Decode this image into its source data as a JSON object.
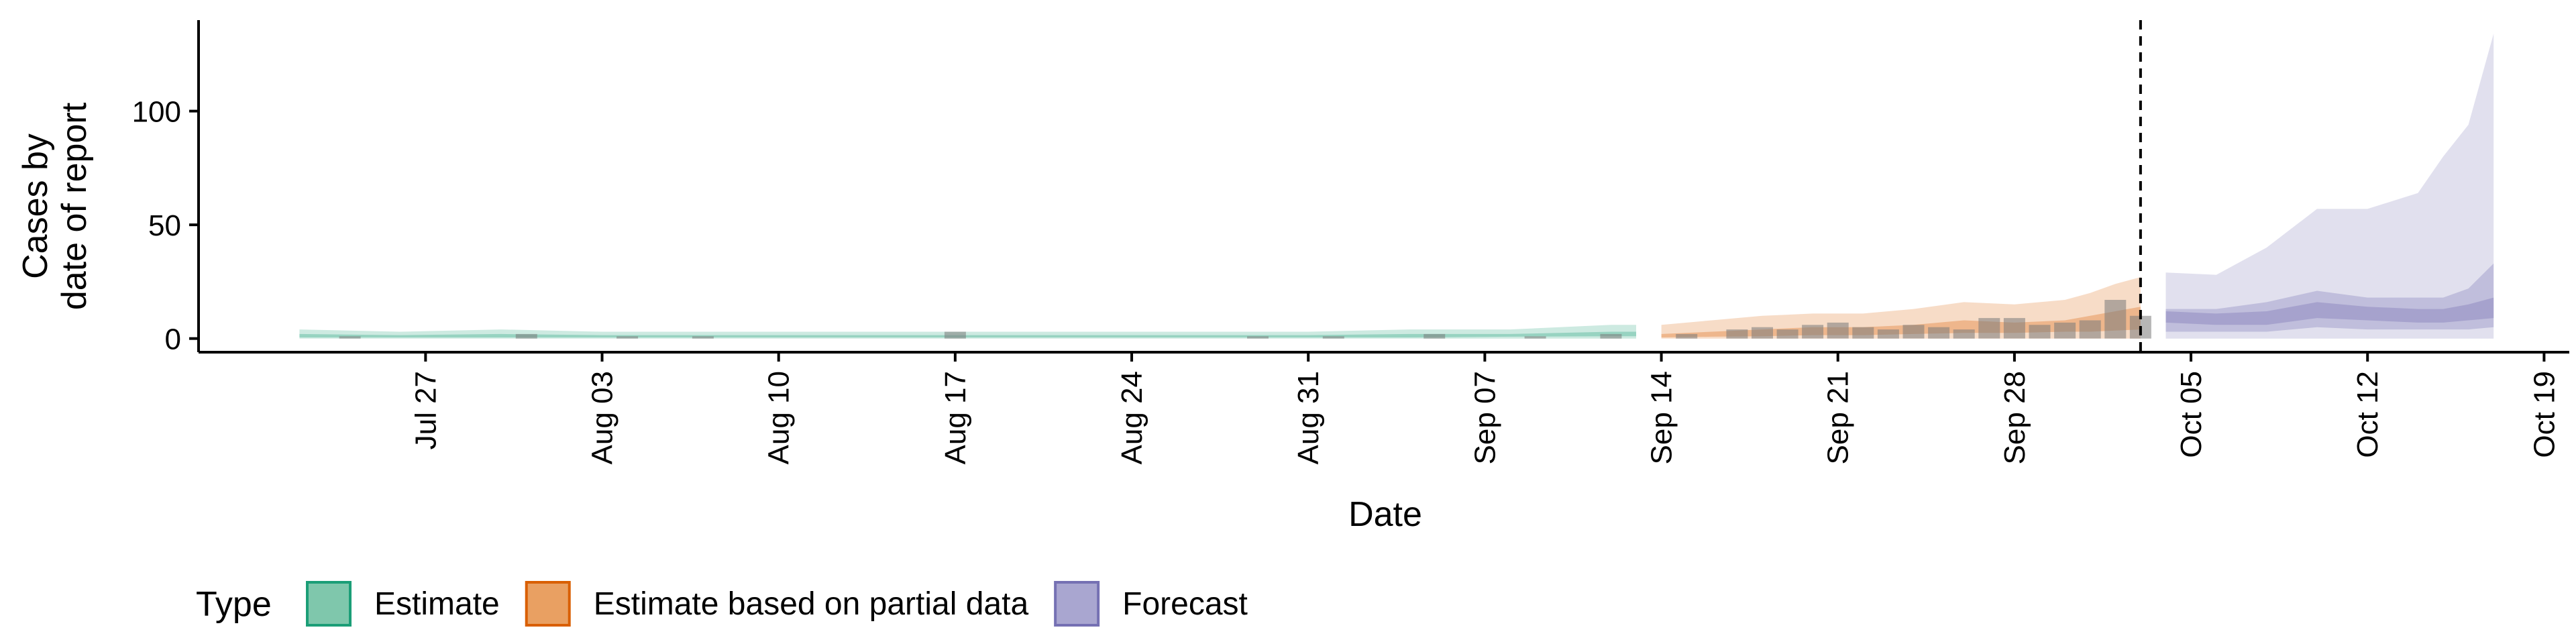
{
  "chart_data": {
    "type": "area",
    "title": "",
    "xlabel": "Date",
    "ylabel_lines": [
      "Cases by",
      "date of report"
    ],
    "xlim": [
      "2020-07-18",
      "2020-10-20"
    ],
    "ylim": [
      -6,
      140
    ],
    "grid": false,
    "y_ticks": [
      0,
      50,
      100
    ],
    "x_ticks": [
      {
        "date": "2020-07-27",
        "label": "Jul 27"
      },
      {
        "date": "2020-08-03",
        "label": "Aug 03"
      },
      {
        "date": "2020-08-10",
        "label": "Aug 10"
      },
      {
        "date": "2020-08-17",
        "label": "Aug 17"
      },
      {
        "date": "2020-08-24",
        "label": "Aug 24"
      },
      {
        "date": "2020-08-31",
        "label": "Aug 31"
      },
      {
        "date": "2020-09-07",
        "label": "Sep 07"
      },
      {
        "date": "2020-09-14",
        "label": "Sep 14"
      },
      {
        "date": "2020-09-21",
        "label": "Sep 21"
      },
      {
        "date": "2020-09-28",
        "label": "Sep 28"
      },
      {
        "date": "2020-10-05",
        "label": "Oct 05"
      },
      {
        "date": "2020-10-12",
        "label": "Oct 12"
      },
      {
        "date": "2020-10-19",
        "label": "Oct 19"
      }
    ],
    "forecast_start_line": "2020-10-03",
    "legend": {
      "title": "Type",
      "placement": "bottom-left",
      "items": [
        {
          "label": "Estimate",
          "fill": "#7fc7ac",
          "stroke": "#1b9e77"
        },
        {
          "label": "Estimate based on partial data",
          "fill": "#e9a062",
          "stroke": "#d95f02"
        },
        {
          "label": "Forecast",
          "fill": "#a9a6d0",
          "stroke": "#7570b3"
        }
      ]
    },
    "series": [
      {
        "name": "Estimate",
        "color": "#1b9e77",
        "x": [
          "2020-07-22",
          "2020-07-26",
          "2020-07-30",
          "2020-08-03",
          "2020-08-07",
          "2020-08-11",
          "2020-08-15",
          "2020-08-19",
          "2020-08-23",
          "2020-08-27",
          "2020-08-31",
          "2020-09-04",
          "2020-09-08",
          "2020-09-12",
          "2020-09-13"
        ],
        "outer_low": [
          0,
          0,
          0,
          0,
          0,
          0,
          0,
          0,
          0,
          0,
          0,
          0,
          0,
          0,
          0
        ],
        "outer_high": [
          4,
          3,
          4,
          3,
          3,
          3,
          3,
          3,
          3,
          3,
          3,
          4,
          4,
          6,
          6
        ],
        "inner_low": [
          0.5,
          0.5,
          0.5,
          0.5,
          0.5,
          0.5,
          0.5,
          0.5,
          0.5,
          0.5,
          0.5,
          0.5,
          0.8,
          1,
          1
        ],
        "inner_high": [
          2,
          1.5,
          2,
          1.5,
          1.5,
          1.5,
          1.5,
          1.5,
          1.5,
          1.5,
          1.5,
          2,
          2,
          3,
          3
        ]
      },
      {
        "name": "Estimate based on partial data",
        "color": "#d95f02",
        "x": [
          "2020-09-14",
          "2020-09-16",
          "2020-09-18",
          "2020-09-20",
          "2020-09-22",
          "2020-09-24",
          "2020-09-26",
          "2020-09-28",
          "2020-09-30",
          "2020-10-01",
          "2020-10-02",
          "2020-10-03"
        ],
        "outer_low": [
          0,
          0,
          0,
          0,
          0,
          0,
          0,
          0,
          0,
          0,
          0,
          0
        ],
        "outer_high": [
          6,
          8,
          10,
          11,
          11,
          13,
          16,
          15,
          17,
          20,
          24,
          27
        ],
        "inner_low": [
          0.5,
          0.8,
          1,
          1.5,
          1.5,
          2,
          2.5,
          2.5,
          3,
          3,
          3.5,
          4
        ],
        "inner_high": [
          2,
          3,
          4,
          5,
          5,
          6,
          8,
          7,
          8,
          10,
          12,
          14
        ]
      },
      {
        "name": "Forecast",
        "color": "#7570b3",
        "x": [
          "2020-10-04",
          "2020-10-06",
          "2020-10-08",
          "2020-10-10",
          "2020-10-12",
          "2020-10-14",
          "2020-10-15",
          "2020-10-16",
          "2020-10-17"
        ],
        "outer_low": [
          0,
          0,
          0,
          0,
          0,
          0,
          0,
          0,
          0
        ],
        "outer_high": [
          29,
          28,
          40,
          57,
          57,
          64,
          80,
          94,
          134
        ],
        "inner_low": [
          3,
          3,
          3,
          5,
          4,
          4,
          4,
          4,
          5
        ],
        "inner_high": [
          13,
          13,
          16,
          21,
          18,
          18,
          18,
          22,
          33
        ],
        "core_low": [
          7,
          6,
          6,
          9,
          8,
          7,
          7,
          8,
          9
        ],
        "core_high": [
          12,
          11,
          12,
          16,
          14,
          13,
          13,
          15,
          18
        ]
      }
    ],
    "reported_cases_bars": {
      "x": [
        "2020-07-24",
        "2020-07-31",
        "2020-08-04",
        "2020-08-07",
        "2020-08-17",
        "2020-08-29",
        "2020-09-01",
        "2020-09-05",
        "2020-09-09",
        "2020-09-12",
        "2020-09-15",
        "2020-09-17",
        "2020-09-18",
        "2020-09-19",
        "2020-09-20",
        "2020-09-21",
        "2020-09-22",
        "2020-09-23",
        "2020-09-24",
        "2020-09-25",
        "2020-09-26",
        "2020-09-27",
        "2020-09-28",
        "2020-09-29",
        "2020-09-30",
        "2020-10-01",
        "2020-10-02",
        "2020-10-03"
      ],
      "values": [
        1,
        2,
        1,
        1,
        3,
        1,
        1,
        2,
        1,
        2,
        2,
        4,
        5,
        4,
        6,
        7,
        5,
        4,
        6,
        5,
        4,
        9,
        9,
        6,
        7,
        8,
        17,
        10
      ]
    }
  }
}
